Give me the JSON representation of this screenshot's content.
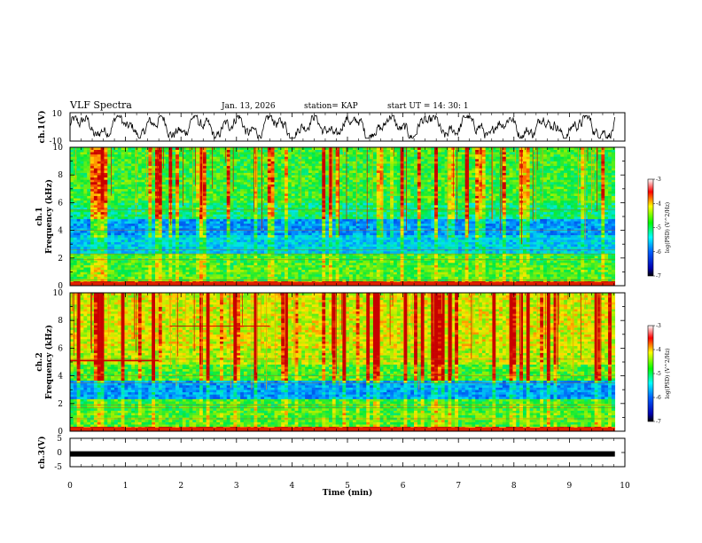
{
  "header": {
    "title": "VLF Spectra",
    "date": "Jan. 13, 2026",
    "station": "station= KAP",
    "start": "start  UT =   14: 30: 1"
  },
  "chart_data": [
    {
      "type": "line",
      "name": "ch1-waveform",
      "ylabel": "ch.1(V)",
      "ylim": [
        -10,
        10
      ],
      "yticks": [
        "10",
        "-10"
      ],
      "xlim": [
        0,
        10
      ],
      "description_values": "noisy voltage trace roughly between -6 and 6 V"
    },
    {
      "type": "heatmap",
      "name": "ch1-spectrogram",
      "ylabel_top": "ch.1",
      "ylabel": "Frequency (kHz)",
      "ylim": [
        0,
        10
      ],
      "yticks": [
        "0",
        "2",
        "4",
        "6",
        "8",
        "10"
      ],
      "xlim": [
        0,
        9.82
      ],
      "colorbar": {
        "label": "log(PSD) (V^2/Hz)",
        "range": [
          -7,
          -3
        ],
        "ticks": [
          "-3",
          "-4",
          "-5",
          "-6",
          "-7"
        ]
      }
    },
    {
      "type": "heatmap",
      "name": "ch2-spectrogram",
      "ylabel_top": "ch.2",
      "ylabel": "Frequency (kHz)",
      "ylim": [
        0,
        10
      ],
      "yticks": [
        "0",
        "2",
        "4",
        "6",
        "8",
        "10"
      ],
      "xlim": [
        0,
        9.82
      ],
      "colorbar": {
        "label": "log(PSD) (V^2/Hz)",
        "range": [
          -7,
          -3
        ],
        "ticks": [
          "-3",
          "-4",
          "-5",
          "-6",
          "-7"
        ]
      }
    },
    {
      "type": "line",
      "name": "ch3-waveform",
      "ylabel": "ch.3(V)",
      "ylim": [
        -5,
        5
      ],
      "yticks": [
        "5",
        "0",
        "-5"
      ],
      "xlim": [
        0,
        10
      ],
      "value": -0.5
    }
  ],
  "xaxis": {
    "label": "Time (min)",
    "ticks": [
      "0",
      "1",
      "2",
      "3",
      "4",
      "5",
      "6",
      "7",
      "8",
      "9",
      "10"
    ],
    "range": [
      0,
      10
    ]
  },
  "colors": {
    "low": "#000080",
    "mid": "#00ff00",
    "high": "#c00000"
  }
}
